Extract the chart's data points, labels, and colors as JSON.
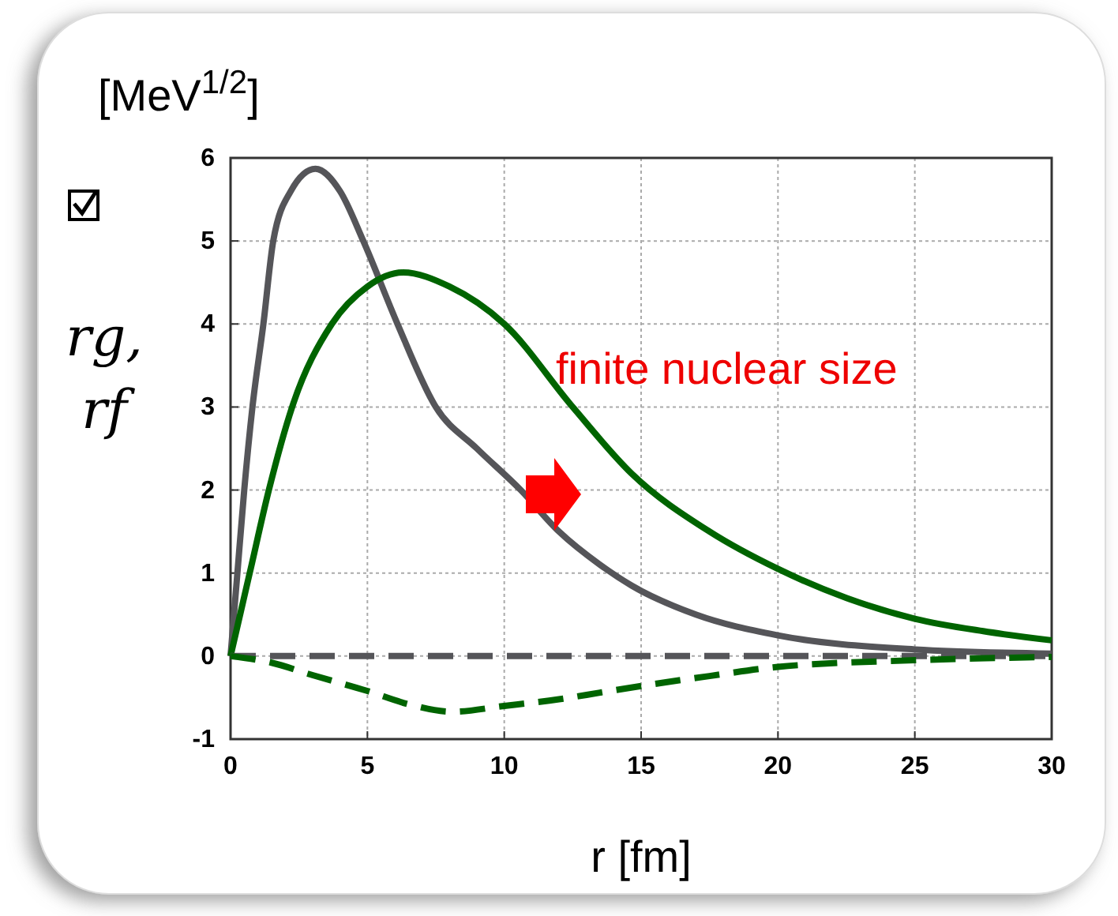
{
  "chart_data": {
    "type": "line",
    "xlabel": "r [fm]",
    "ylabel": "rg, rf",
    "annotations": [
      "[MeV$^{1/2}$]",
      "finite nuclear size"
    ],
    "xlim": [
      0,
      30
    ],
    "ylim": [
      -1,
      6
    ],
    "xticks": [
      0,
      5,
      10,
      15,
      20,
      25,
      30
    ],
    "yticks": [
      -1,
      0,
      1,
      2,
      3,
      4,
      5,
      6
    ],
    "grid": true,
    "marker": "none",
    "series": [
      {
        "color": "#555559",
        "line_style": "solid",
        "x": [
          0,
          0.25,
          0.5,
          0.8,
          1.2,
          1.56,
          2.2,
          3.1,
          4,
          4.85,
          6.1,
          7.5,
          9,
          10.6,
          12,
          13.5,
          14.65,
          17,
          20,
          25,
          30
        ],
        "values": [
          0,
          1,
          2,
          3,
          4,
          5,
          5.6,
          5.87,
          5.6,
          5,
          4,
          3,
          2.5,
          2,
          1.5,
          1.1,
          0.85,
          0.5,
          0.25,
          0.08,
          0.03
        ]
      },
      {
        "color": "#006400",
        "line_style": "solid",
        "x": [
          0,
          0.7,
          1.4,
          2.25,
          3.7,
          5,
          6.3,
          8,
          10,
          12.5,
          14.65,
          17.5,
          20,
          22.5,
          25,
          27.5,
          30
        ],
        "values": [
          0,
          1,
          2,
          3,
          4,
          4.45,
          4.62,
          4.45,
          4,
          3,
          2.2,
          1.5,
          1.05,
          0.7,
          0.45,
          0.3,
          0.19
        ]
      },
      {
        "color": "#555559",
        "line_style": "dashed",
        "x": [
          0,
          30
        ],
        "values": [
          0,
          0
        ]
      },
      {
        "color": "#006400",
        "line_style": "dashed",
        "x": [
          0,
          1.5,
          3,
          5,
          6.5,
          8.1,
          10,
          12,
          13.5,
          15,
          17.5,
          20,
          25,
          30
        ],
        "values": [
          0,
          -0.08,
          -0.23,
          -0.42,
          -0.58,
          -0.67,
          -0.6,
          -0.52,
          -0.44,
          -0.36,
          -0.24,
          -0.13,
          -0.05,
          -0.01
        ]
      }
    ]
  }
}
